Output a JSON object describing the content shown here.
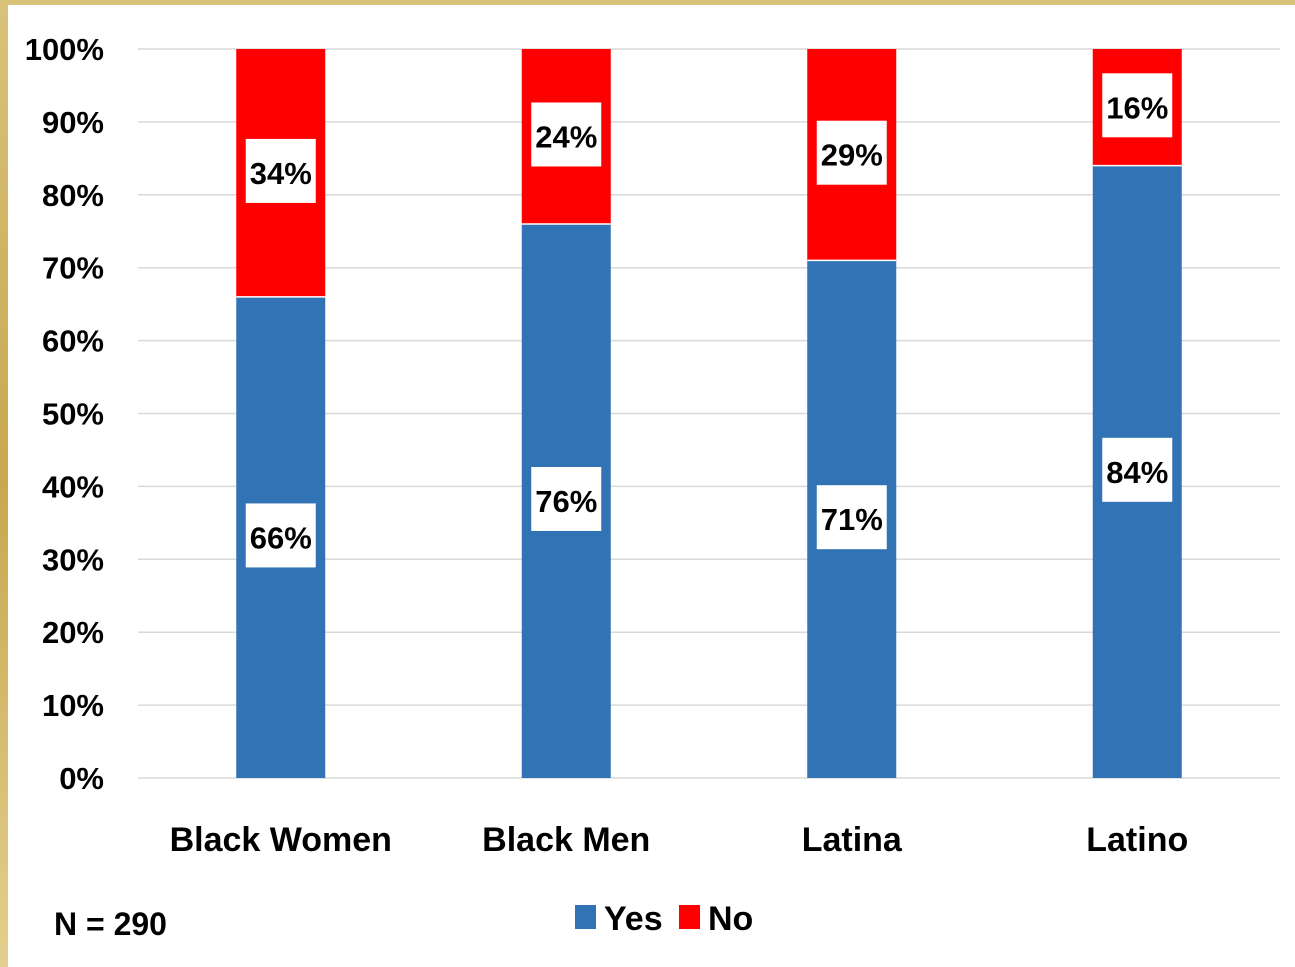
{
  "note": "N = 290",
  "chart_data": {
    "type": "bar",
    "stacked": true,
    "categories": [
      "Black Women",
      "Black Men",
      "Latina",
      "Latino"
    ],
    "series": [
      {
        "name": "Yes",
        "values": [
          66,
          76,
          71,
          84
        ],
        "labels": [
          "66%",
          "76%",
          "71%",
          "84%"
        ],
        "color": "#3173b4"
      },
      {
        "name": "No",
        "values": [
          34,
          24,
          29,
          16
        ],
        "labels": [
          "34%",
          "24%",
          "29%",
          "16%"
        ],
        "color": "#ff0000"
      }
    ],
    "ylim": [
      0,
      100
    ],
    "yticks": [
      "0%",
      "10%",
      "20%",
      "30%",
      "40%",
      "50%",
      "60%",
      "70%",
      "80%",
      "90%",
      "100%"
    ],
    "grid": true,
    "legend_position": "bottom"
  }
}
